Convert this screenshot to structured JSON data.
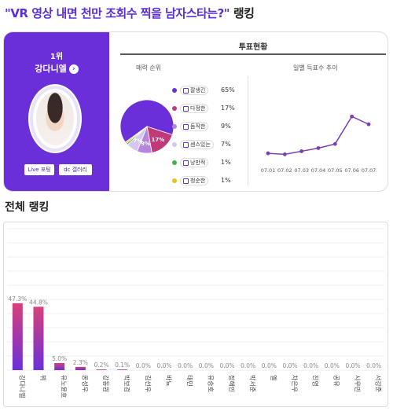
{
  "page": {
    "title_main": "\"VR 영상 내면 천만 조회수 찍을 남자스타는?\"",
    "title_suffix": " 랭킹",
    "overall_title": "전체 랭킹"
  },
  "leader": {
    "rank_label": "1위",
    "name": "강다니엘",
    "arrow_icon": "chevron-right-icon",
    "live_button": "Live 포팅",
    "dc_button": "dc 갤러리"
  },
  "vote_status": {
    "title": "투표현황",
    "charm_label": "매력 순위",
    "daily_label": "일별 득표수 추이"
  },
  "colors": {
    "primary": "#6a2fd9",
    "pink": "#c2397a",
    "light_purple": "#b487dc",
    "lavender": "#d7c6ee",
    "green": "#3cb44b",
    "yellow": "#e6c619"
  },
  "chart_data": [
    {
      "type": "pie",
      "title": "",
      "labels": [
        "잘생긴",
        "다정한",
        "듬직한",
        "센스있는",
        "낭만적",
        "청순한"
      ],
      "values": [
        65,
        17,
        9,
        7,
        1,
        1
      ],
      "value_labels": [
        "65%",
        "17%",
        "9%",
        "7%",
        "1%",
        "1%"
      ],
      "slice_labels": [
        "",
        "17%",
        "9%",
        "7%",
        "",
        ""
      ],
      "colors": [
        "#6a2fd9",
        "#c2397a",
        "#b487dc",
        "#d7c6ee",
        "#3cb44b",
        "#e6c619"
      ],
      "legend_placement": "right"
    },
    {
      "type": "line",
      "title": "",
      "x": [
        "07.01",
        "07.02",
        "07.03",
        "07.04",
        "07.05",
        "07.06",
        "07.07"
      ],
      "values": [
        12,
        10,
        16,
        22,
        30,
        83,
        68
      ],
      "ylim": [
        0,
        100
      ],
      "grid": false,
      "color": "#7a3fb0"
    },
    {
      "type": "bar",
      "title": "",
      "categories": [
        "강다니엘",
        "뷔",
        "유노윤호",
        "옹성우",
        "강동원",
        "박보검",
        "김선우",
        "바뇨",
        "태민",
        "유승호",
        "정해인",
        "박서준",
        "엘",
        "차은우",
        "진영",
        "공유",
        "시우민",
        "서강준"
      ],
      "values": [
        47.3,
        44.8,
        5.0,
        2.3,
        0.2,
        0.1,
        0.0,
        0.0,
        0.0,
        0.0,
        0.0,
        0.0,
        0.0,
        0.0,
        0.0,
        0.0,
        0.0,
        0.0
      ],
      "value_labels": [
        "47.3%",
        "44.8%",
        "5.0%",
        "2.3%",
        "0.2%",
        "0.1%",
        "0.0%",
        "0.0%",
        "0.0%",
        "0.0%",
        "0.0%",
        "0.0%",
        "0.0%",
        "0.0%",
        "0.0%",
        "0.0%",
        "0.0%",
        "0.0%"
      ],
      "ylim": [
        0,
        100
      ],
      "grid": true,
      "color_top": "#d9407a",
      "color_bottom": "#6a2fd9"
    }
  ]
}
